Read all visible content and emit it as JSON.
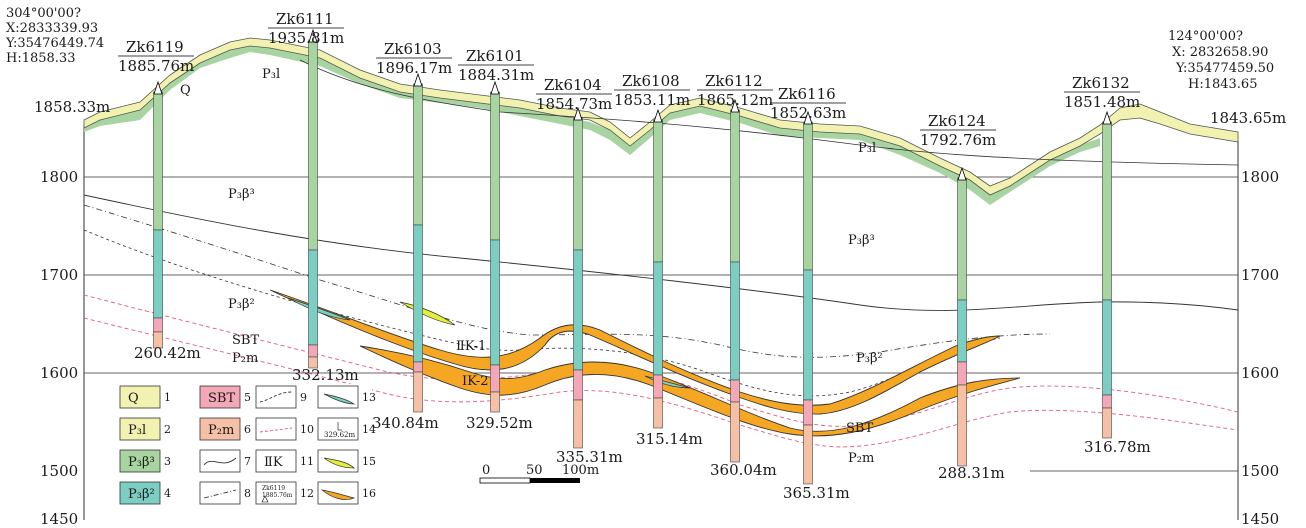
{
  "corner_left": {
    "lines": [
      "304°00'00?",
      "X:2833339.93",
      "Y:35476449.74",
      "H:1858.33"
    ],
    "end_elevation": "1858.33m"
  },
  "corner_right": {
    "lines": [
      "124°00'00?",
      "X: 2832658.90",
      "Y:35477459.50",
      "H:1843.65"
    ],
    "end_elevation": "1843.65m"
  },
  "elevation_axis": {
    "left_ticks": [
      "1800",
      "1700",
      "1600",
      "1500",
      "1450"
    ],
    "right_ticks": [
      "1800",
      "1700",
      "1600",
      "1500",
      "1450"
    ]
  },
  "boreholes": [
    {
      "name": "Zk6119",
      "elevation": "1885.76m",
      "depth": "260.42m"
    },
    {
      "name": "Zk6111",
      "elevation": "1935.81m",
      "depth": "332.13m"
    },
    {
      "name": "Zk6103",
      "elevation": "1896.17m",
      "depth": "340.84m"
    },
    {
      "name": "Zk6101",
      "elevation": "1884.31m",
      "depth": "329.52m"
    },
    {
      "name": "Zk6104",
      "elevation": "1854.73m",
      "depth": "335.31m"
    },
    {
      "name": "Zk6108",
      "elevation": "1853.11m",
      "depth": "315.14m"
    },
    {
      "name": "Zk6112",
      "elevation": "1865.12m",
      "depth": "360.04m"
    },
    {
      "name": "Zk6116",
      "elevation": "1852.63m",
      "depth": "365.31m"
    },
    {
      "name": "Zk6124",
      "elevation": "1792.76m",
      "depth": "288.31m"
    },
    {
      "name": "Zk6132",
      "elevation": "1851.48m",
      "depth": "316.78m"
    }
  ],
  "unit_labels": {
    "q": "Q",
    "p3l_a": "P₃l",
    "p3l_b": "P₃l",
    "p3b3_a": "P₃β³",
    "p3b3_b": "P₃β³",
    "p3b2_a": "P₃β²",
    "p3b2_b": "P₃β²",
    "sbt_a": "SBT",
    "sbt_b": "SBT",
    "p2m_a": "P₂m",
    "p2m_b": "P₂m",
    "ore2": "ⅡK-1",
    "ore1": "ⅠK-2"
  },
  "scale_bar": {
    "labels": [
      "0",
      "50",
      "100m"
    ]
  },
  "legend": [
    {
      "num": "1",
      "label": "Q",
      "kind": "box",
      "color": "#f2f2b0"
    },
    {
      "num": "2",
      "label": "P₃l",
      "kind": "box",
      "color": "#f2f2b0"
    },
    {
      "num": "3",
      "label": "P₃β³",
      "kind": "box",
      "color": "#a7d4a0"
    },
    {
      "num": "4",
      "label": "P₃β²",
      "kind": "box",
      "color": "#7ccdc2"
    },
    {
      "num": "5",
      "label": "SBT",
      "kind": "box",
      "color": "#f2a8b6"
    },
    {
      "num": "6",
      "label": "P₂m",
      "kind": "box",
      "color": "#f6c0a6"
    },
    {
      "num": "7",
      "label": "",
      "kind": "solid-contact"
    },
    {
      "num": "8",
      "label": "",
      "kind": "dash-dot-contact"
    },
    {
      "num": "9",
      "label": "",
      "kind": "dash-contact"
    },
    {
      "num": "10",
      "label": "",
      "kind": "pink-dash"
    },
    {
      "num": "11",
      "label": "ⅡK",
      "kind": "text"
    },
    {
      "num": "12",
      "label": "Zk6119 1885.76m",
      "kind": "borehole-symbol"
    },
    {
      "num": "13",
      "label": "",
      "kind": "teal-lens"
    },
    {
      "num": "14",
      "label": "329.62m",
      "kind": "depth-symbol"
    },
    {
      "num": "15",
      "label": "",
      "kind": "yellow-lens"
    },
    {
      "num": "16",
      "label": "",
      "kind": "orange-ore"
    }
  ],
  "colors": {
    "quaternary": "#f2f2b0",
    "p3l_band": "#a7d4a0",
    "p3b3": "#a7d4a0",
    "p3b2": "#7ccdc2",
    "sbt": "#f2a8b6",
    "p2m": "#f6c0a6",
    "ore": "#f5a623",
    "ore_outline": "#333333",
    "pink_line": "#e85a7a"
  }
}
